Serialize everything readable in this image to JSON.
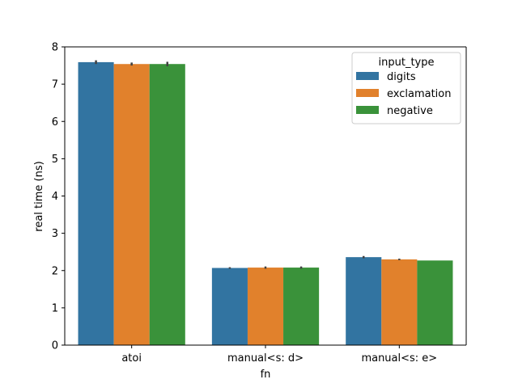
{
  "chart_data": {
    "type": "bar",
    "title": "",
    "xlabel": "fn",
    "ylabel": "real time (ns)",
    "categories": [
      "atoi",
      "manual<s: d>",
      "manual<s: e>"
    ],
    "series": [
      {
        "name": "digits",
        "values": [
          7.59,
          2.07,
          2.36
        ],
        "err": [
          0.05,
          0.02,
          0.03
        ],
        "color": "#3274a1"
      },
      {
        "name": "exclamation",
        "values": [
          7.54,
          2.08,
          2.3
        ],
        "err": [
          0.04,
          0.03,
          0.02
        ],
        "color": "#e1812c"
      },
      {
        "name": "negative",
        "values": [
          7.54,
          2.08,
          2.27
        ],
        "err": [
          0.06,
          0.03,
          0.0
        ],
        "color": "#3a923a"
      }
    ],
    "ylim": [
      0,
      8
    ],
    "yticks": [
      0,
      1,
      2,
      3,
      4,
      5,
      6,
      7,
      8
    ],
    "legend": {
      "title": "input_type",
      "placement": "top-right"
    },
    "grid": false
  }
}
